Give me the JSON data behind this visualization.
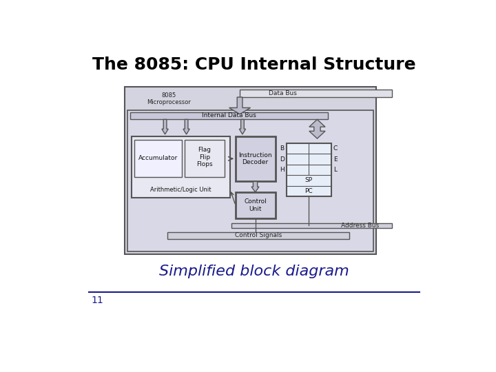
{
  "title": "The 8085: CPU Internal Structure",
  "subtitle": "Simplified block diagram",
  "slide_number": "11",
  "bg_color": "#ffffff",
  "title_color": "#000000",
  "subtitle_color": "#1a1a8c",
  "slide_num_color": "#1a1a8c",
  "diagram_bg": "#d4d4e0",
  "diagram_border": "#555555",
  "box_color": "#e8e8f2",
  "acc_color": "#f0f0ff",
  "reg_color": "#e8eef8",
  "bus_color": "#c8c8d8",
  "dark_box": "#d0d0e0"
}
